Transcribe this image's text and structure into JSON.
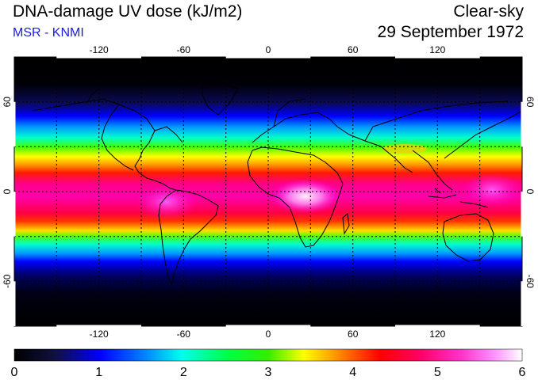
{
  "header": {
    "title": "DNA-damage UV dose (kJ/m2)",
    "credit": "MSR - KNMI",
    "sky_condition": "Clear-sky",
    "date": "29 September 1972"
  },
  "map": {
    "projection": "equirectangular",
    "lon_range": [
      -180,
      180
    ],
    "lat_range": [
      -90,
      90
    ],
    "lon_ticks": [
      "-120",
      "-60",
      "0",
      "60",
      "120"
    ],
    "lat_ticks": [
      "60",
      "0",
      "-60"
    ],
    "gridlines": "dotted",
    "coastlines": "black"
  },
  "colorbar": {
    "min": 0,
    "max": 6,
    "tick_labels": [
      "0",
      "1",
      "2",
      "3",
      "4",
      "5",
      "6"
    ],
    "colors": [
      "#000000",
      "#1a1a66",
      "#0000ff",
      "#00ccff",
      "#00ff66",
      "#33ee00",
      "#ffff00",
      "#ff8800",
      "#ff0000",
      "#ff0099",
      "#ff66ff",
      "#ffffff"
    ]
  }
}
